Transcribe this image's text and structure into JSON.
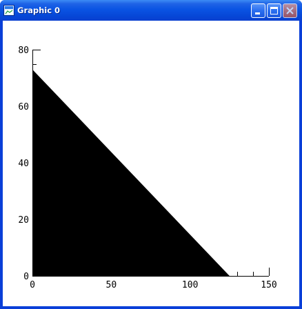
{
  "window": {
    "title": "Graphic 0",
    "buttons": {
      "minimize": "minimize",
      "maximize": "maximize",
      "close": "close"
    }
  },
  "chart_data": {
    "type": "area",
    "x": [
      0,
      125
    ],
    "y": [
      73,
      0
    ],
    "fill_color": "#000000",
    "xlim": [
      0,
      150
    ],
    "ylim": [
      0,
      80
    ],
    "x_ticks": [
      0,
      50,
      100,
      150
    ],
    "y_ticks": [
      0,
      20,
      40,
      60,
      80
    ],
    "x_tick_labels": [
      "0",
      "50",
      "100",
      "150"
    ],
    "y_tick_labels": [
      "0",
      "20",
      "40",
      "60",
      "80"
    ],
    "x_minor_step": 10,
    "y_minor_step": 5,
    "grid": false,
    "title": "",
    "xlabel": "",
    "ylabel": ""
  }
}
